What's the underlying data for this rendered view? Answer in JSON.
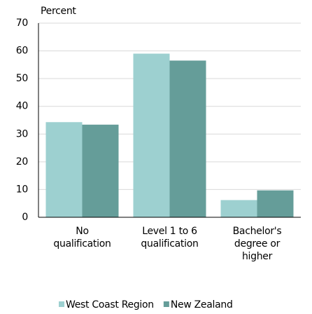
{
  "chart_data": {
    "type": "bar",
    "y_axis_label": "Percent",
    "categories": [
      "No\nqualification",
      "Level 1 to 6\nqualification",
      "Bachelor's\ndegree or\nhigher"
    ],
    "series": [
      {
        "name": "West Coast Region",
        "color": "#9dd0d0",
        "values": [
          34.3,
          59,
          6.2
        ]
      },
      {
        "name": "New Zealand",
        "color": "#659d99",
        "values": [
          33.4,
          56.5,
          9.7
        ]
      }
    ],
    "ylim": [
      0,
      70
    ],
    "yticks": [
      0,
      10,
      20,
      30,
      40,
      50,
      60,
      70
    ],
    "grid": true,
    "legend": "bottom"
  }
}
